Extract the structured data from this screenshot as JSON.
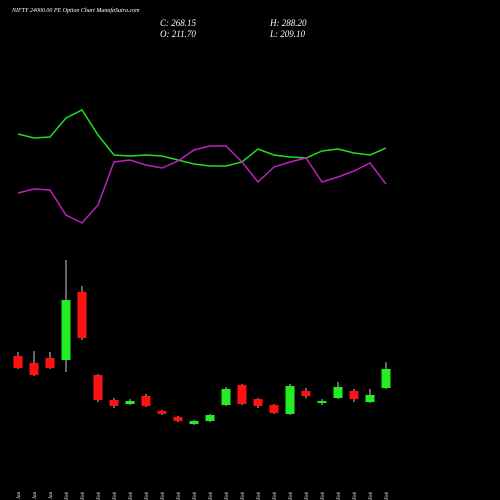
{
  "chart_data": [
    {
      "type": "candlestick",
      "title": "NIFTY 24000.00 PE Option Chart MunafaSutra.com",
      "annotations": [
        "C: 268.15",
        "H: 288.20",
        "O: 211.70",
        "L: 209.10"
      ],
      "categories": [
        "28 Jan",
        "29 Jan",
        "30 Jan",
        "01 Feb",
        "03 Feb",
        "04 Feb",
        "05 Feb",
        "06 Feb",
        "07 Feb",
        "10 Feb",
        "11 Feb",
        "12 Feb",
        "13 Feb",
        "14 Feb",
        "17 Feb",
        "18 Feb",
        "19 Feb",
        "20 Feb",
        "21 Feb",
        "24 Feb",
        "25 Feb",
        "26 Feb",
        "27 Feb",
        "28 Feb"
      ],
      "open": [
        306.8,
        286,
        300.8,
        294.9,
        497,
        250.3,
        176,
        164.1,
        187.9,
        143.4,
        125.5,
        104.7,
        113.7,
        161.2,
        220.6,
        179,
        161.2,
        134.5,
        202.8,
        167.1,
        182,
        202.8,
        170.1,
        211.7
      ],
      "high": [
        318.7,
        321.6,
        318.7,
        592,
        514.8,
        253.3,
        182,
        179,
        193.9,
        146.4,
        128.5,
        116.6,
        134.5,
        214.7,
        223.6,
        182,
        164.1,
        223.6,
        211.7,
        179,
        229.5,
        208.7,
        208.7,
        288.2
      ],
      "low": [
        268.2,
        247.4,
        268.2,
        259.2,
        354.3,
        170.1,
        152.3,
        161.2,
        155.3,
        131.5,
        110.7,
        101.8,
        110.7,
        158.2,
        161.2,
        152.3,
        134.5,
        131.5,
        181,
        161.2,
        179,
        170.1,
        167.1,
        209.1
      ],
      "close": [
        271.1,
        250.3,
        271.1,
        473.2,
        360.3,
        176,
        158.2,
        173.1,
        158.2,
        134.5,
        113.7,
        113.7,
        131.5,
        208.7,
        164.1,
        158.2,
        137.4,
        217.7,
        187.9,
        173.1,
        214.7,
        179,
        190.9,
        268.15
      ],
      "up_color": "#22ee22",
      "down_color": "#ff1111",
      "ylim": [
        57.2,
        681.1
      ]
    },
    {
      "type": "line",
      "series": [
        {
          "color": "#22dd22",
          "values": [
            116,
            112,
            113,
            132,
            140,
            115,
            95,
            94,
            95,
            94,
            90,
            86,
            84,
            84,
            88,
            101,
            95,
            93,
            92,
            99,
            101,
            97,
            95,
            102
          ]
        },
        {
          "color": "#bb22bb",
          "values": [
            57,
            61,
            60,
            35,
            27,
            45,
            88,
            90,
            85,
            82,
            89,
            100,
            104,
            104,
            88,
            68,
            83,
            88,
            92,
            68,
            73,
            79,
            87,
            66
          ]
        }
      ],
      "ylim": [
        0,
        200
      ]
    }
  ]
}
